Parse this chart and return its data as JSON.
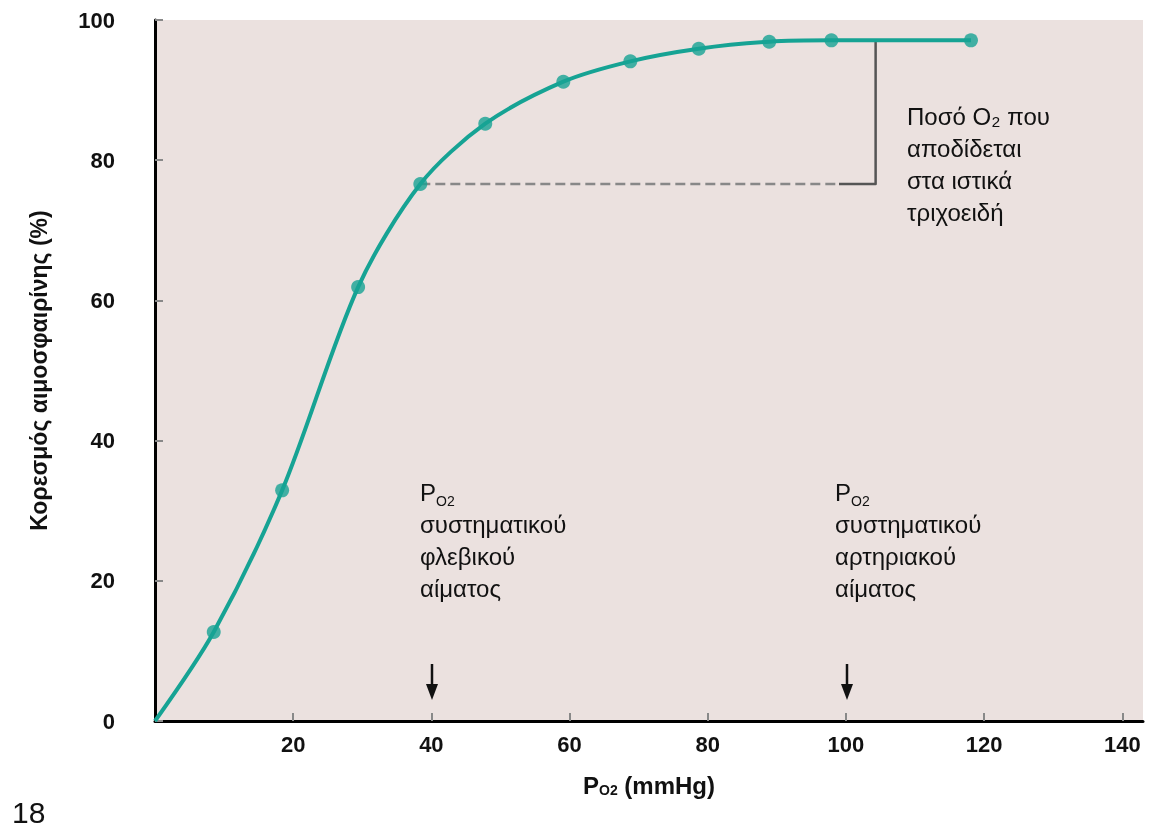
{
  "chart_data": {
    "type": "line",
    "xlabel": "P$_{O2}$ (mmHg)",
    "ylabel": "Κορεσμός αιμοσφαιρίνης (%)",
    "series": [
      {
        "color": "#16a394",
        "marker": "none",
        "x": [
          0,
          8.5,
          18.4,
          29.4,
          38.4,
          47.8,
          59.1,
          68.8,
          78.7,
          88.9,
          97.9,
          118.1
        ],
        "values": [
          0,
          12.7,
          32.9,
          61.9,
          76.6,
          85.2,
          91.2,
          94.1,
          95.9,
          96.9,
          97.1,
          97.1
        ]
      },
      {
        "type": "scatter",
        "color": "#16a394",
        "marker": "circle",
        "x": [
          8.5,
          18.4,
          29.4,
          38.4,
          47.8,
          59.1,
          68.8,
          78.7,
          88.9,
          97.9,
          118.1
        ],
        "values": [
          12.7,
          32.9,
          61.9,
          76.6,
          85.2,
          91.2,
          94.1,
          95.9,
          96.9,
          97.1,
          97.1
        ]
      },
      {
        "color": "#555555",
        "marker": "none",
        "line_style": "solid",
        "x": [
          104.3,
          104.3,
          99
        ],
        "values": [
          97.1,
          76.6,
          76.6
        ]
      },
      {
        "color": "#888888",
        "marker": "none",
        "line_style": "dashed",
        "x": [
          38.4,
          99
        ],
        "values": [
          76.6,
          76.6
        ]
      }
    ],
    "xlim": [
      0,
      143
    ],
    "xticks": [
      20,
      40,
      60,
      80,
      100,
      120,
      140
    ],
    "ylim": [
      0,
      100
    ],
    "yticks": [
      0,
      20,
      40,
      60,
      80,
      100
    ],
    "grid": false,
    "annotations": [
      "Ποσό O₂ που\nαποδίδεται\nστα ιστικά\nτριχοειδή",
      "P$_{O2}$\nσυστηματικού\nφλεβικού\nαίματος",
      "P$_{O2}$\nσυστηματικού\nαρτηριακού\nαίματος",
      "18"
    ]
  }
}
